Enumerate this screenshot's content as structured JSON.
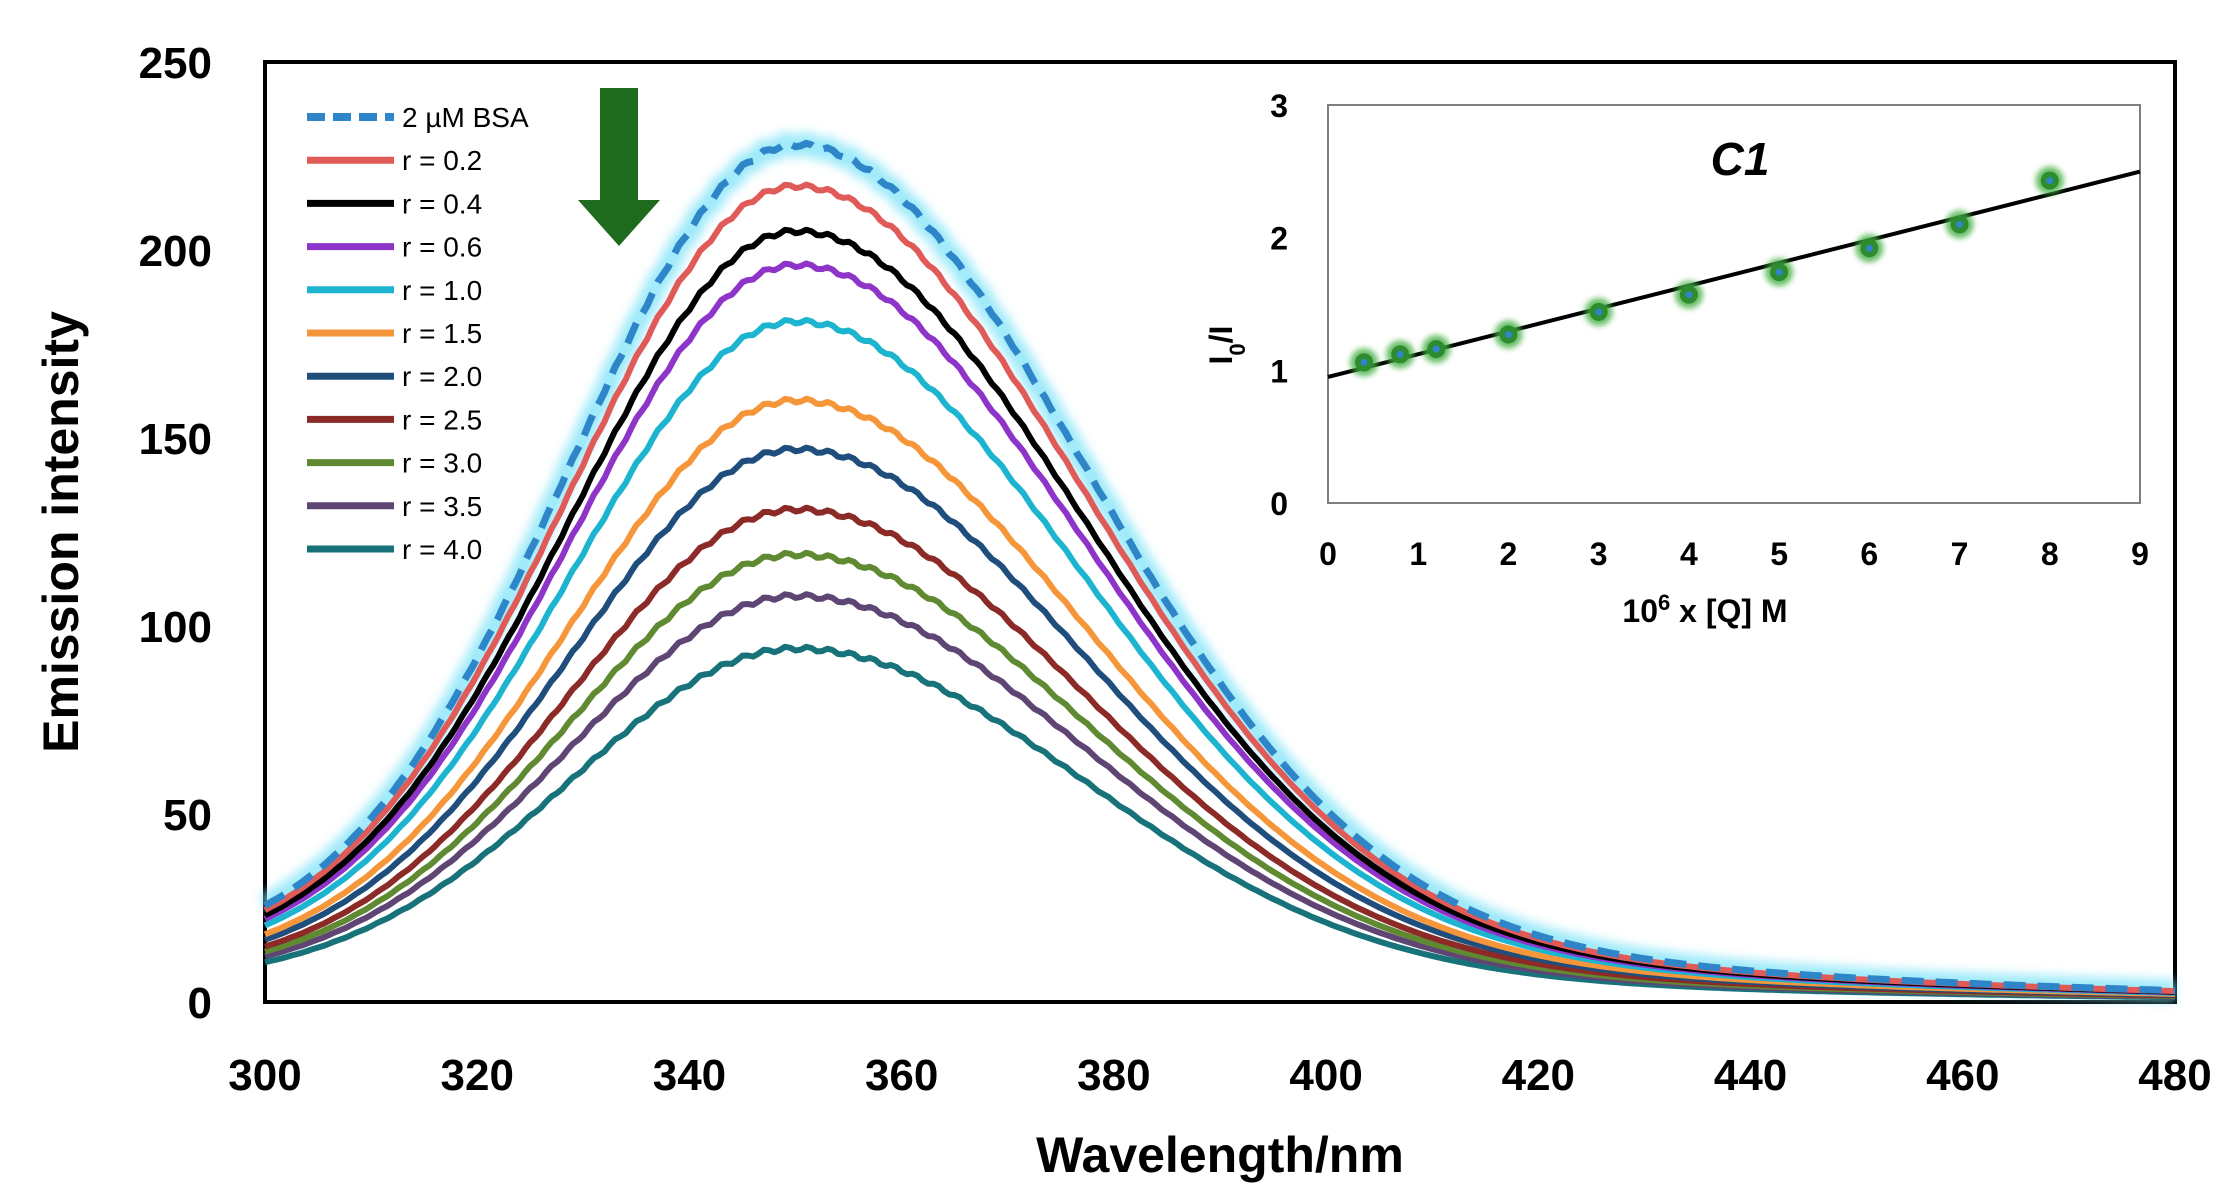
{
  "chart_data": [
    {
      "type": "line",
      "xlabel": "Wavelength/nm",
      "ylabel": "Emission intensity",
      "xlim": [
        300,
        480
      ],
      "ylim": [
        0,
        250
      ],
      "xticks": [
        "300",
        "320",
        "340",
        "360",
        "380",
        "400",
        "420",
        "440",
        "460",
        "480"
      ],
      "yticks": [
        "0",
        "50",
        "100",
        "150",
        "200",
        "250"
      ],
      "peak_wavelength": 350,
      "series": [
        {
          "name": "2 µM  BSA",
          "peak": 228,
          "color": "#2E86C8",
          "dashed": true,
          "glow": true
        },
        {
          "name": "r = 0.2",
          "peak": 217,
          "color": "#E05A57"
        },
        {
          "name": "r = 0.4",
          "peak": 205,
          "color": "#000000"
        },
        {
          "name": "r = 0.6",
          "peak": 196,
          "color": "#8E34C9"
        },
        {
          "name": "r = 1.0",
          "peak": 181,
          "color": "#1CB4CF"
        },
        {
          "name": "r = 1.5",
          "peak": 160,
          "color": "#F5963A"
        },
        {
          "name": "r = 2.0",
          "peak": 147,
          "color": "#1F4E7D"
        },
        {
          "name": "r = 2.5",
          "peak": 131,
          "color": "#8B2A26"
        },
        {
          "name": "r = 3.0",
          "peak": 119,
          "color": "#5F8A32"
        },
        {
          "name": "r = 3.5",
          "peak": 108,
          "color": "#5E4574"
        },
        {
          "name": "r = 4.0",
          "peak": 94,
          "color": "#17727A"
        }
      ],
      "annotation": "downward arrow (decreasing intensity)",
      "arrow_color": "#1E6B1E"
    },
    {
      "type": "scatter",
      "title": "C1",
      "xlabel": "10",
      "xlabel_sup": "6",
      "xlabel_rest": " x [Q] M",
      "ylabel": "I",
      "ylabel_sub": "0",
      "ylabel_rest": "/I",
      "xlim": [
        0,
        9
      ],
      "ylim": [
        0,
        3
      ],
      "xticks": [
        "0",
        "1",
        "2",
        "3",
        "4",
        "5",
        "6",
        "7",
        "8",
        "9"
      ],
      "yticks": [
        "0",
        "1",
        "2",
        "3"
      ],
      "x": [
        0.4,
        0.8,
        1.2,
        2,
        3,
        4,
        5,
        6,
        7,
        8
      ],
      "y": [
        1.06,
        1.12,
        1.16,
        1.27,
        1.44,
        1.57,
        1.74,
        1.92,
        2.1,
        2.43
      ],
      "fit": {
        "slope": 0.172,
        "intercept": 0.95
      },
      "marker_color": "#2E8B2E",
      "marker_center": "#2E86C8"
    }
  ]
}
